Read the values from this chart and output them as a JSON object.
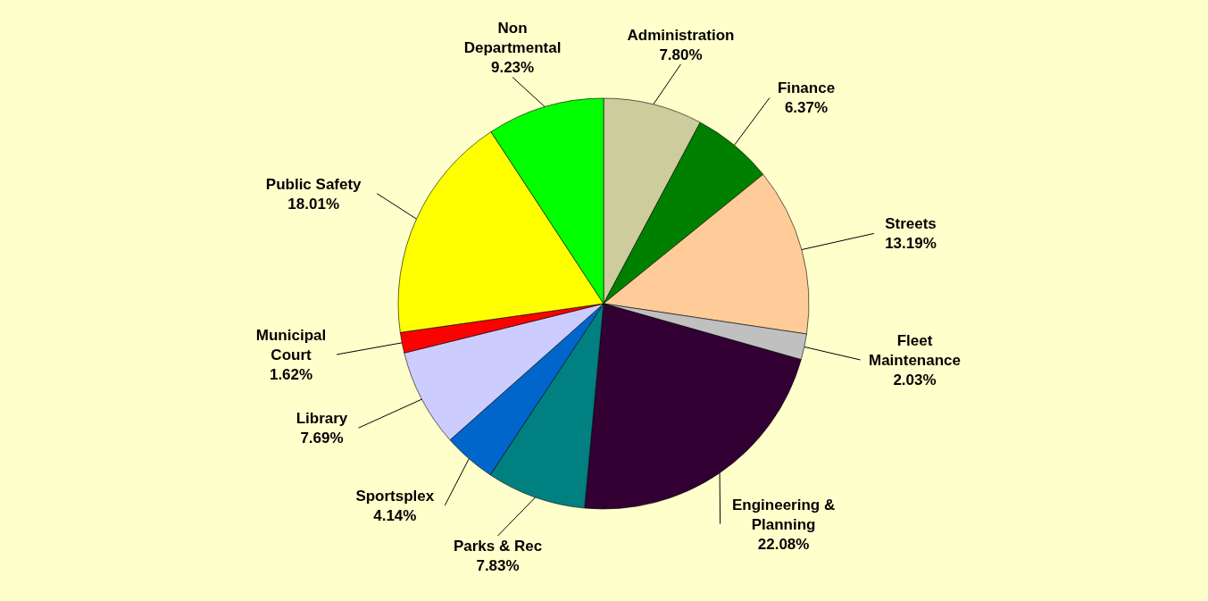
{
  "chart_data": {
    "type": "pie",
    "categories": [
      "Administration",
      "Finance",
      "Streets",
      "Fleet Maintenance",
      "Engineering & Planning",
      "Parks & Rec",
      "Sportsplex",
      "Library",
      "Municipal Court",
      "Public Safety",
      "Non Departmental"
    ],
    "values": [
      7.8,
      6.37,
      13.19,
      2.03,
      22.08,
      7.83,
      4.14,
      7.69,
      1.62,
      18.01,
      9.23
    ],
    "value_labels": [
      "7.80%",
      "6.37%",
      "13.19%",
      "2.03%",
      "22.08%",
      "7.83%",
      "4.14%",
      "7.69%",
      "1.62%",
      "18.01%",
      "9.23%"
    ],
    "colors": [
      "#cccc9c",
      "#008000",
      "#ffcc99",
      "#c0c0c0",
      "#330033",
      "#008080",
      "#0066cc",
      "#ccccff",
      "#ff0000",
      "#ffff00",
      "#00ff00"
    ]
  }
}
